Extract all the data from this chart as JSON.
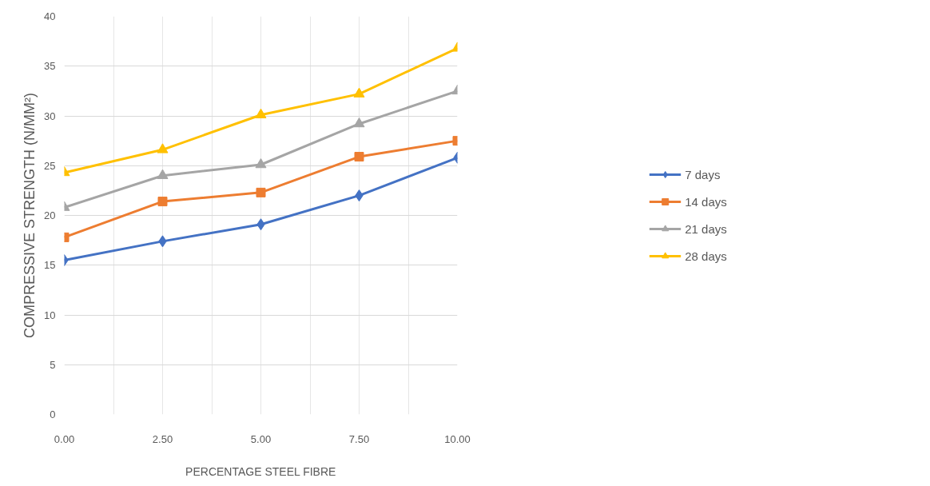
{
  "chart_data": {
    "type": "line",
    "xlabel": "PERCENTAGE STEEL FIBRE",
    "ylabel": "COMPRESSIVE STRENGTH (N/MM²)",
    "x": [
      0,
      2.5,
      5,
      7.5,
      10
    ],
    "series": [
      {
        "name": "7 days",
        "color": "#4472c4",
        "marker": "diamond",
        "values": [
          15.5,
          17.4,
          19.1,
          22.0,
          25.8
        ]
      },
      {
        "name": "14 days",
        "color": "#ed7d31",
        "marker": "square",
        "values": [
          17.8,
          21.4,
          22.3,
          25.9,
          27.5
        ]
      },
      {
        "name": "21 days",
        "color": "#a5a5a5",
        "marker": "triangle",
        "values": [
          20.8,
          24.0,
          25.1,
          29.2,
          32.5
        ]
      },
      {
        "name": "28 days",
        "color": "#ffc000",
        "marker": "triangle",
        "values": [
          24.3,
          26.6,
          30.1,
          32.2,
          36.8
        ]
      }
    ],
    "xlim": [
      0,
      10
    ],
    "ylim": [
      0,
      40
    ],
    "xticks": [
      {
        "value": 0,
        "label": "0.00"
      },
      {
        "value": 1.25,
        "label": null
      },
      {
        "value": 2.5,
        "label": "2.50"
      },
      {
        "value": 3.75,
        "label": null
      },
      {
        "value": 5,
        "label": "5.00"
      },
      {
        "value": 6.25,
        "label": null
      },
      {
        "value": 7.5,
        "label": "7.50"
      },
      {
        "value": 8.75,
        "label": null
      },
      {
        "value": 10,
        "label": "10.00"
      }
    ],
    "yticks": [
      0,
      5,
      10,
      15,
      20,
      25,
      30,
      35,
      40
    ],
    "grid": true,
    "legend": "right",
    "line_style": "solid"
  }
}
